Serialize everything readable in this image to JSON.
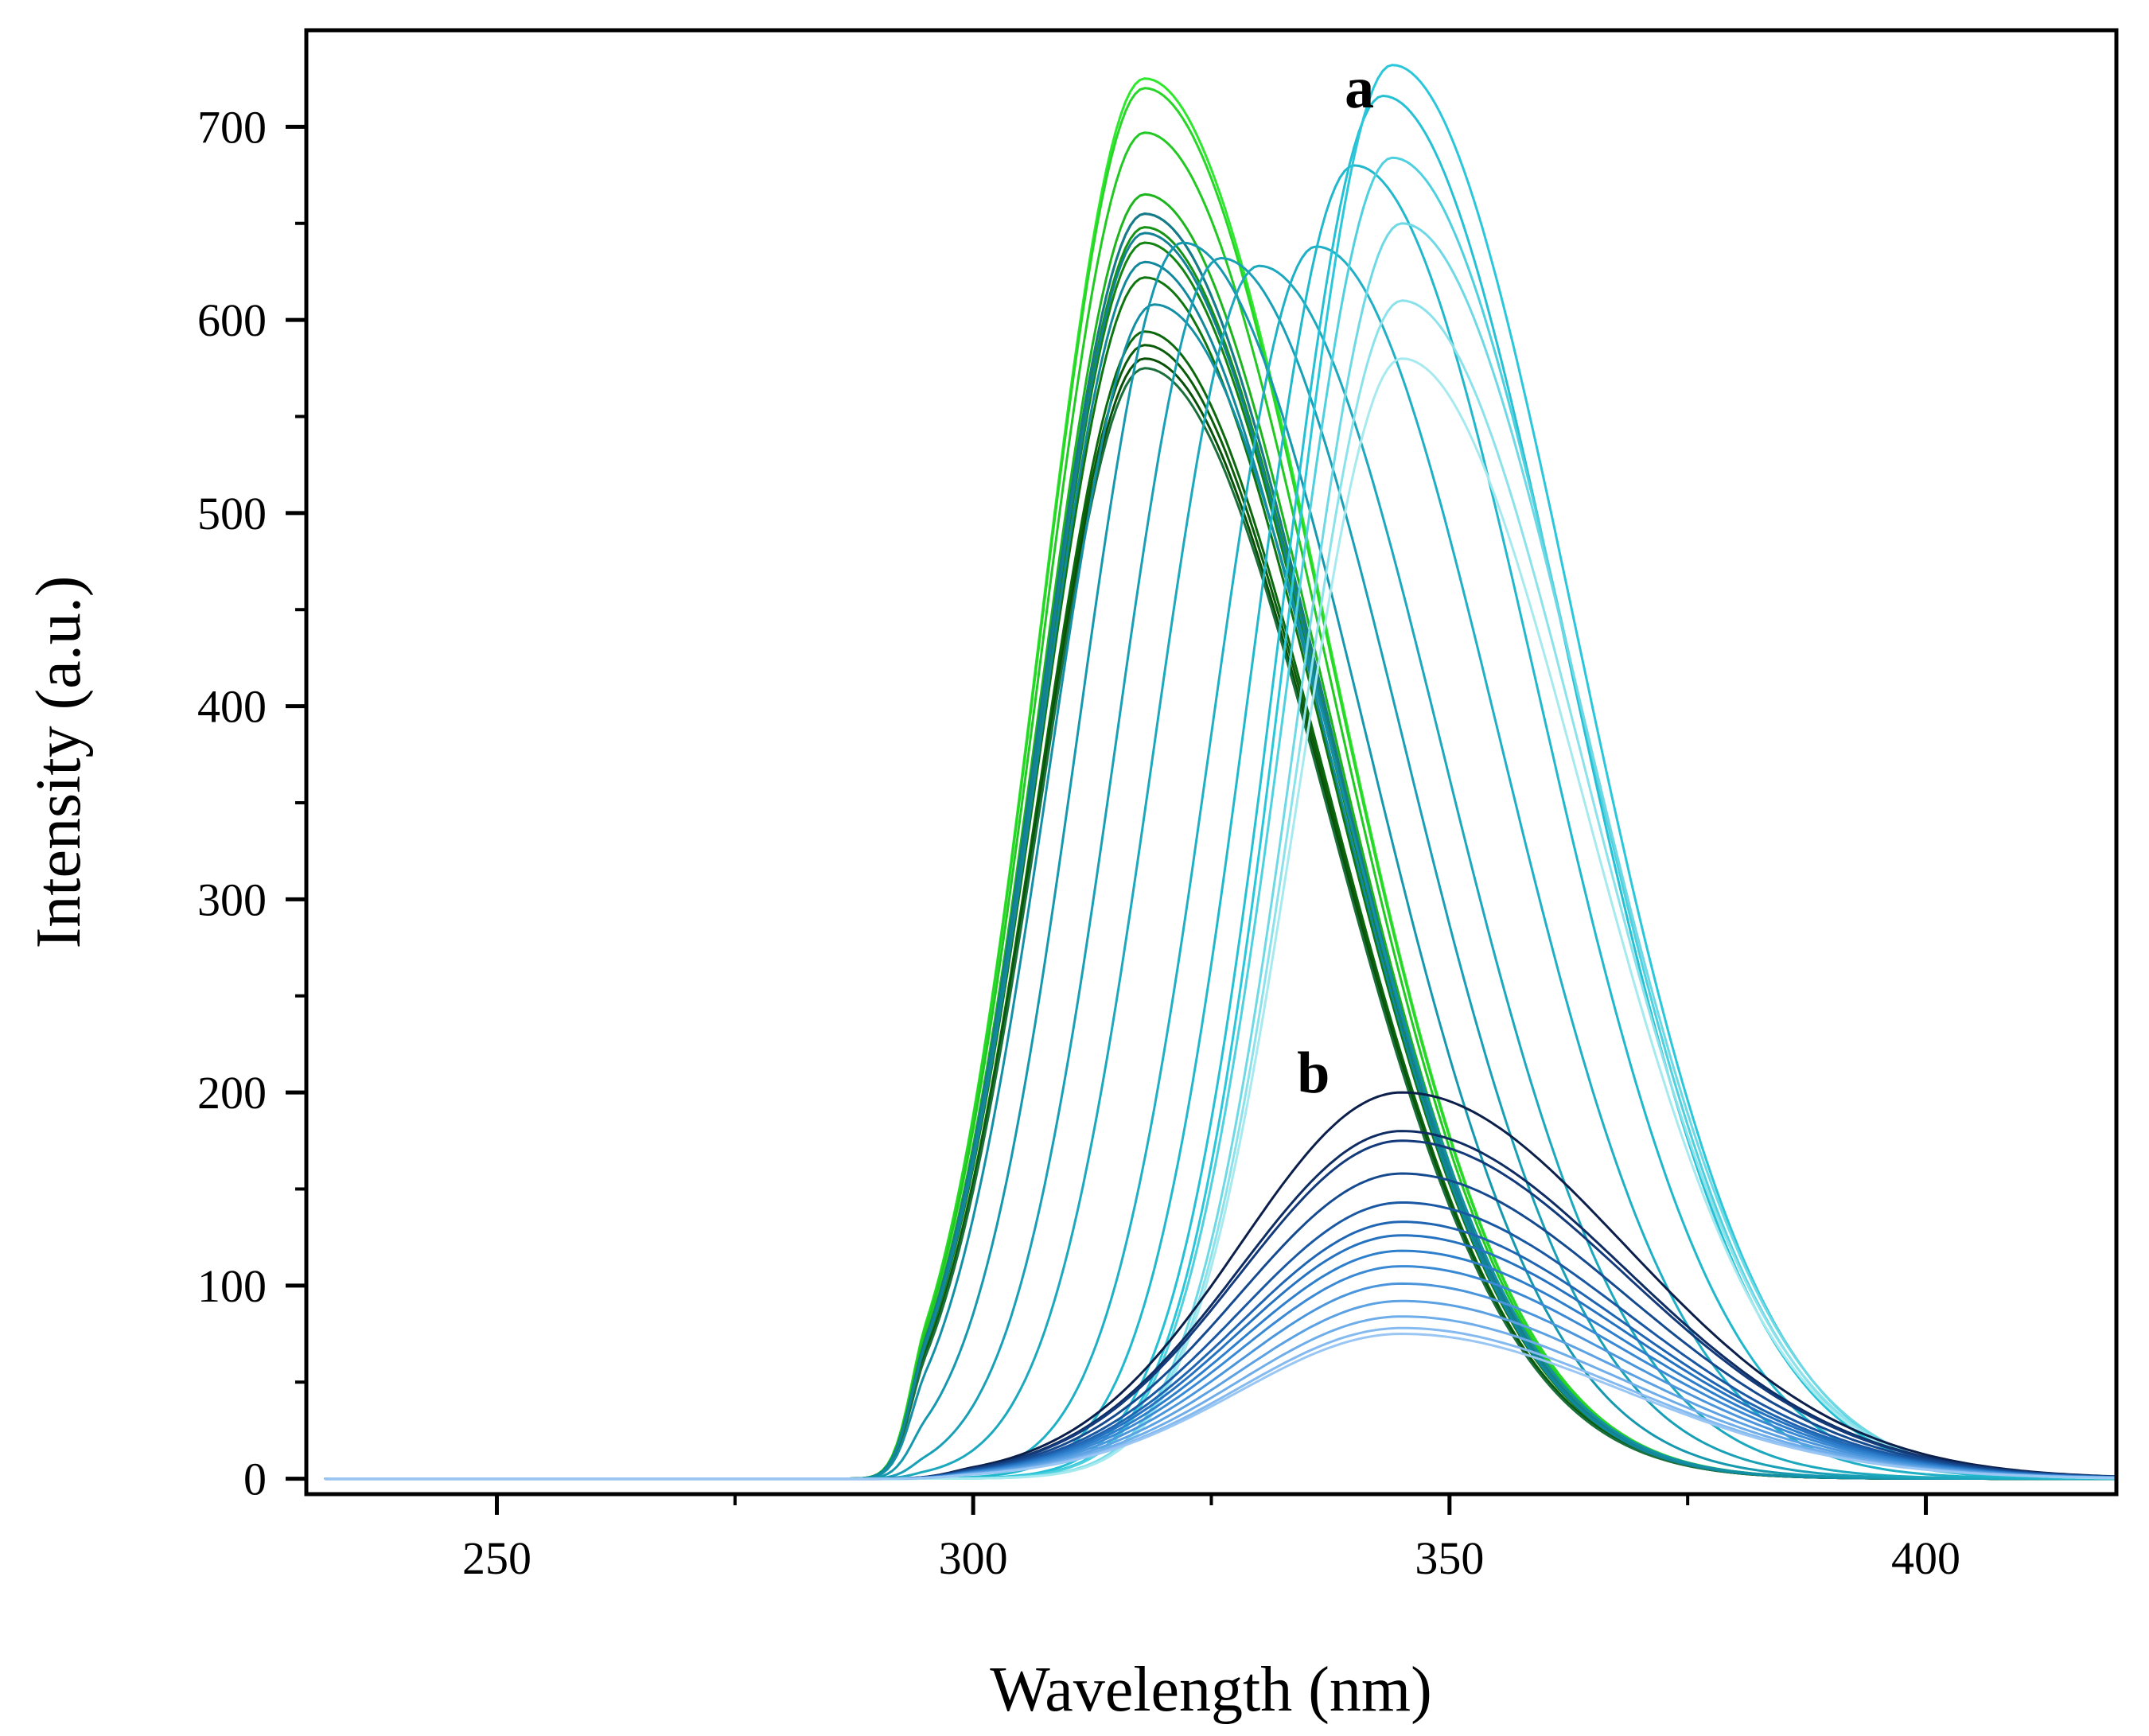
{
  "chart_data": {
    "type": "line",
    "title": "",
    "xlabel": "Wavelength (nm)",
    "ylabel": "Intensity (a.u.)",
    "xlim": [
      230,
      420
    ],
    "ylim": [
      -8,
      750
    ],
    "x_ticks": [
      250,
      300,
      350,
      400
    ],
    "x_tick_labels": [
      "250",
      "300",
      "350",
      "400"
    ],
    "y_ticks": [
      0,
      100,
      200,
      300,
      400,
      500,
      600,
      700
    ],
    "y_tick_labels": [
      "0",
      "100",
      "200",
      "300",
      "400",
      "500",
      "600",
      "700"
    ],
    "grid": false,
    "legend": "none",
    "annotations": [
      {
        "text": "a",
        "x": 339,
        "y": 710
      },
      {
        "text": "b",
        "x": 334,
        "y": 200
      }
    ],
    "series": [
      {
        "name": "a1",
        "group": "a",
        "peak_x": 318,
        "peak_y": 725,
        "color": "#2ee82e"
      },
      {
        "name": "a2",
        "group": "a",
        "peak_x": 318,
        "peak_y": 720,
        "color": "#27d627"
      },
      {
        "name": "a3",
        "group": "a",
        "peak_x": 318,
        "peak_y": 697,
        "color": "#22c922"
      },
      {
        "name": "a4",
        "group": "a",
        "peak_x": 318,
        "peak_y": 665,
        "color": "#1db51d"
      },
      {
        "name": "a5",
        "group": "a",
        "peak_x": 318,
        "peak_y": 655,
        "color": "#18a318"
      },
      {
        "name": "a6",
        "group": "a",
        "peak_x": 318,
        "peak_y": 648,
        "color": "#159315"
      },
      {
        "name": "a7",
        "group": "a",
        "peak_x": 318,
        "peak_y": 640,
        "color": "#128412"
      },
      {
        "name": "a8",
        "group": "a",
        "peak_x": 318,
        "peak_y": 622,
        "color": "#0f760f"
      },
      {
        "name": "a9",
        "group": "a",
        "peak_x": 318,
        "peak_y": 594,
        "color": "#0c680c"
      },
      {
        "name": "a10",
        "group": "a",
        "peak_x": 318,
        "peak_y": 587,
        "color": "#0a5c0a"
      },
      {
        "name": "a11",
        "group": "a",
        "peak_x": 318,
        "peak_y": 580,
        "color": "#084f08"
      },
      {
        "name": "a12",
        "group": "a",
        "peak_x": 318,
        "peak_y": 575,
        "color": "#1a6f3a"
      },
      {
        "name": "a13",
        "group": "a",
        "peak_x": 318,
        "peak_y": 655,
        "color": "#167a8c"
      },
      {
        "name": "a14",
        "group": "a",
        "peak_x": 318,
        "peak_y": 645,
        "color": "#138294"
      },
      {
        "name": "a15",
        "group": "a",
        "peak_x": 318,
        "peak_y": 630,
        "color": "#11889c"
      },
      {
        "name": "a16",
        "group": "a",
        "peak_x": 319,
        "peak_y": 608,
        "color": "#1490a6"
      },
      {
        "name": "a17",
        "group": "a",
        "peak_x": 322,
        "peak_y": 640,
        "color": "#1698ae"
      },
      {
        "name": "a18",
        "group": "a",
        "peak_x": 326,
        "peak_y": 632,
        "color": "#19a0b6"
      },
      {
        "name": "a19",
        "group": "a",
        "peak_x": 330,
        "peak_y": 628,
        "color": "#1ca8bd"
      },
      {
        "name": "a20",
        "group": "a",
        "peak_x": 336,
        "peak_y": 638,
        "color": "#1fb0c5"
      },
      {
        "name": "a21",
        "group": "a",
        "peak_x": 340,
        "peak_y": 680,
        "color": "#22b8cc"
      },
      {
        "name": "a22",
        "group": "a",
        "peak_x": 343,
        "peak_y": 716,
        "color": "#26c0d4"
      },
      {
        "name": "a23",
        "group": "a",
        "peak_x": 344,
        "peak_y": 732,
        "color": "#2ac7da"
      },
      {
        "name": "a24",
        "group": "a",
        "peak_x": 344,
        "peak_y": 684,
        "color": "#4fd0df"
      },
      {
        "name": "a25",
        "group": "a",
        "peak_x": 345,
        "peak_y": 650,
        "color": "#6ed9e5"
      },
      {
        "name": "a26",
        "group": "a",
        "peak_x": 345,
        "peak_y": 610,
        "color": "#8ce2ea"
      },
      {
        "name": "a27",
        "group": "a",
        "peak_x": 345,
        "peak_y": 580,
        "color": "#a6eaf0"
      },
      {
        "name": "b1",
        "group": "b",
        "peak_x": 345,
        "peak_y": 200,
        "color": "#0b1f4a"
      },
      {
        "name": "b2",
        "group": "b",
        "peak_x": 345,
        "peak_y": 180,
        "color": "#0f2d63"
      },
      {
        "name": "b3",
        "group": "b",
        "peak_x": 345,
        "peak_y": 175,
        "color": "#133a7a"
      },
      {
        "name": "b4",
        "group": "b",
        "peak_x": 345,
        "peak_y": 158,
        "color": "#164a8f"
      },
      {
        "name": "b5",
        "group": "b",
        "peak_x": 345,
        "peak_y": 143,
        "color": "#1a58a3"
      },
      {
        "name": "b6",
        "group": "b",
        "peak_x": 345,
        "peak_y": 133,
        "color": "#1f65b2"
      },
      {
        "name": "b7",
        "group": "b",
        "peak_x": 345,
        "peak_y": 126,
        "color": "#2572c0"
      },
      {
        "name": "b8",
        "group": "b",
        "peak_x": 345,
        "peak_y": 118,
        "color": "#2d7ecb"
      },
      {
        "name": "b9",
        "group": "b",
        "peak_x": 345,
        "peak_y": 110,
        "color": "#3a89d4"
      },
      {
        "name": "b10",
        "group": "b",
        "peak_x": 345,
        "peak_y": 101,
        "color": "#4a95dc"
      },
      {
        "name": "b11",
        "group": "b",
        "peak_x": 345,
        "peak_y": 92,
        "color": "#5ba1e3"
      },
      {
        "name": "b12",
        "group": "b",
        "peak_x": 345,
        "peak_y": 84,
        "color": "#6fadea"
      },
      {
        "name": "b13",
        "group": "b",
        "peak_x": 345,
        "peak_y": 78,
        "color": "#84baf0"
      },
      {
        "name": "b14",
        "group": "b",
        "peak_x": 345,
        "peak_y": 75,
        "color": "#9ac6f4"
      }
    ]
  }
}
